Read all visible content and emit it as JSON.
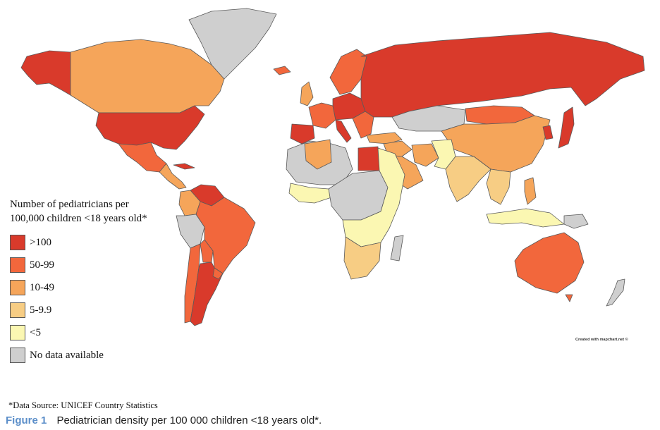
{
  "colors": {
    "gt100": "#d93a2b",
    "c50_99": "#f2673c",
    "c10_49": "#f5a55a",
    "c5_9": "#f7cd84",
    "lt5": "#fbf7b2",
    "nodata": "#cfcfcf",
    "border": "#5a5a5a",
    "ocean": "#ffffff"
  },
  "legend": {
    "title": "Number of pediatricians per\n100,000 children <18 years old*",
    "items": [
      {
        "label": ">100",
        "category": "gt100"
      },
      {
        "label": "50-99",
        "category": "c50_99"
      },
      {
        "label": "10-49",
        "category": "c10_49"
      },
      {
        "label": "5-9.9",
        "category": "c5_9"
      },
      {
        "label": "<5",
        "category": "lt5"
      },
      {
        "label": "No data available",
        "category": "nodata"
      }
    ]
  },
  "regions": [
    {
      "name": "Alaska",
      "category": "gt100"
    },
    {
      "name": "Canada",
      "category": "c10_49"
    },
    {
      "name": "Greenland",
      "category": "nodata"
    },
    {
      "name": "United States",
      "category": "gt100"
    },
    {
      "name": "Mexico",
      "category": "c50_99"
    },
    {
      "name": "Central America",
      "category": "c10_49"
    },
    {
      "name": "Cuba",
      "category": "gt100"
    },
    {
      "name": "Venezuela",
      "category": "gt100"
    },
    {
      "name": "Colombia",
      "category": "c10_49"
    },
    {
      "name": "Brazil",
      "category": "c50_99"
    },
    {
      "name": "Peru",
      "category": "nodata"
    },
    {
      "name": "Bolivia",
      "category": "c50_99"
    },
    {
      "name": "Argentina",
      "category": "gt100"
    },
    {
      "name": "Chile",
      "category": "c50_99"
    },
    {
      "name": "Uruguay",
      "category": "c50_99"
    },
    {
      "name": "Iceland",
      "category": "c50_99"
    },
    {
      "name": "United Kingdom",
      "category": "c10_49"
    },
    {
      "name": "Scandinavia",
      "category": "c50_99"
    },
    {
      "name": "Iberia",
      "category": "gt100"
    },
    {
      "name": "Western Europe",
      "category": "c50_99"
    },
    {
      "name": "Central Europe",
      "category": "gt100"
    },
    {
      "name": "Italy",
      "category": "gt100"
    },
    {
      "name": "Balkans",
      "category": "c50_99"
    },
    {
      "name": "Turkey",
      "category": "c10_49"
    },
    {
      "name": "Russia",
      "category": "gt100"
    },
    {
      "name": "Kazakhstan",
      "category": "nodata"
    },
    {
      "name": "Mongolia",
      "category": "c50_99"
    },
    {
      "name": "China",
      "category": "c10_49"
    },
    {
      "name": "Japan",
      "category": "gt100"
    },
    {
      "name": "Korea",
      "category": "gt100"
    },
    {
      "name": "Middle East",
      "category": "c10_49"
    },
    {
      "name": "Arabian Peninsula",
      "category": "c10_49"
    },
    {
      "name": "Iran",
      "category": "c10_49"
    },
    {
      "name": "Afghanistan Pakistan",
      "category": "lt5"
    },
    {
      "name": "India",
      "category": "c5_9"
    },
    {
      "name": "Southeast Asia",
      "category": "c5_9"
    },
    {
      "name": "Indonesia",
      "category": "lt5"
    },
    {
      "name": "Philippines",
      "category": "c10_49"
    },
    {
      "name": "Australia",
      "category": "c50_99"
    },
    {
      "name": "New Zealand",
      "category": "nodata"
    },
    {
      "name": "Papua New Guinea",
      "category": "nodata"
    },
    {
      "name": "North Africa",
      "category": "nodata"
    },
    {
      "name": "Algeria",
      "category": "c10_49"
    },
    {
      "name": "Egypt",
      "category": "gt100"
    },
    {
      "name": "West Africa",
      "category": "lt5"
    },
    {
      "name": "Central Africa",
      "category": "nodata"
    },
    {
      "name": "East Africa",
      "category": "lt5"
    },
    {
      "name": "Southern Africa",
      "category": "c5_9"
    },
    {
      "name": "Madagascar",
      "category": "nodata"
    }
  ],
  "credit": "Created with mapchart.net ©",
  "source_note": "*Data Source: UNICEF Country Statistics",
  "caption": {
    "label": "Figure 1",
    "text": "Pediatrician density per 100 000 children <18 years old*."
  }
}
